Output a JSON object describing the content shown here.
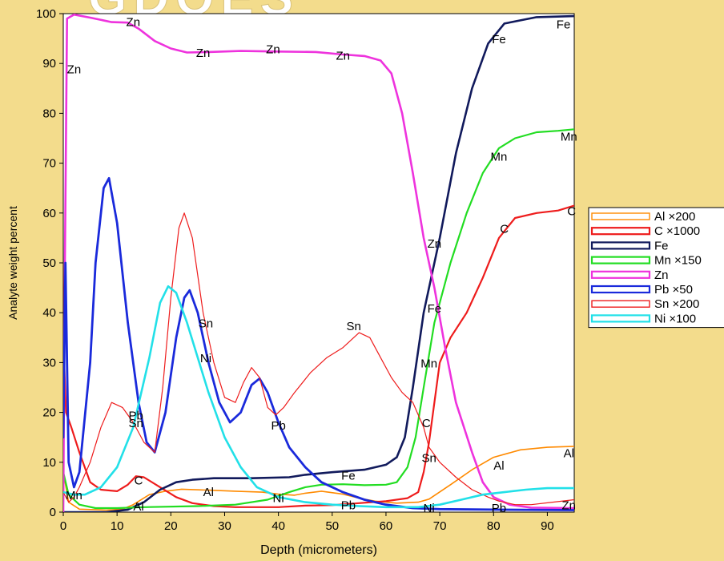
{
  "chart_data": {
    "type": "line",
    "title_fragment": "GDOES",
    "xlabel": "Depth (micrometers)",
    "ylabel": "Analyte weight percent",
    "xlim": [
      0,
      95
    ],
    "ylim": [
      0,
      100
    ],
    "xticks": [
      0,
      10,
      20,
      30,
      40,
      50,
      60,
      70,
      80,
      90
    ],
    "yticks": [
      0,
      10,
      20,
      30,
      40,
      50,
      60,
      70,
      80,
      90,
      100
    ],
    "grid": false,
    "legend_position": "right",
    "series": [
      {
        "name": "Al ×200",
        "color": "#ff8a00",
        "width": 1.6,
        "style": "double",
        "points": [
          [
            0,
            8
          ],
          [
            1,
            2
          ],
          [
            3,
            0.6
          ],
          [
            8,
            0.4
          ],
          [
            11,
            0.6
          ],
          [
            13,
            1.5
          ],
          [
            16,
            3.5
          ],
          [
            19,
            4.2
          ],
          [
            22,
            4.6
          ],
          [
            27,
            4.4
          ],
          [
            32,
            4.2
          ],
          [
            37,
            4.0
          ],
          [
            40,
            3.6
          ],
          [
            43,
            3.4
          ],
          [
            45,
            3.8
          ],
          [
            48,
            4.2
          ],
          [
            52,
            3.6
          ],
          [
            55,
            2.8
          ],
          [
            58,
            2.2
          ],
          [
            62,
            1.8
          ],
          [
            66,
            2
          ],
          [
            68,
            2.6
          ],
          [
            72,
            5.5
          ],
          [
            76,
            8.5
          ],
          [
            80,
            11
          ],
          [
            85,
            12.5
          ],
          [
            90,
            13
          ],
          [
            95,
            13.2
          ]
        ],
        "labels": [
          [
            14,
            1.3,
            "Al"
          ],
          [
            27,
            4.2,
            "Al"
          ],
          [
            81,
            9.5,
            "Al"
          ],
          [
            94,
            12,
            "Al"
          ]
        ]
      },
      {
        "name": "C ×1000",
        "color": "#ee1c1c",
        "width": 2.2,
        "style": "double",
        "points": [
          [
            0,
            35
          ],
          [
            0.5,
            20
          ],
          [
            1.5,
            17
          ],
          [
            3,
            12
          ],
          [
            5,
            6
          ],
          [
            7,
            4.5
          ],
          [
            10,
            4.2
          ],
          [
            12,
            5.5
          ],
          [
            13.5,
            7.2
          ],
          [
            15,
            7
          ],
          [
            18,
            5
          ],
          [
            21,
            3
          ],
          [
            24,
            1.8
          ],
          [
            28,
            1.2
          ],
          [
            32,
            1
          ],
          [
            40,
            1
          ],
          [
            45,
            1.3
          ],
          [
            50,
            1.4
          ],
          [
            55,
            1.8
          ],
          [
            60,
            2.2
          ],
          [
            64,
            2.8
          ],
          [
            66,
            4
          ],
          [
            67,
            8
          ],
          [
            68,
            14
          ],
          [
            69,
            22
          ],
          [
            70,
            30
          ],
          [
            72,
            35
          ],
          [
            75,
            40
          ],
          [
            78,
            47
          ],
          [
            81,
            55
          ],
          [
            84,
            59
          ],
          [
            88,
            60
          ],
          [
            92,
            60.5
          ],
          [
            95,
            61.5
          ]
        ],
        "labels": [
          [
            14,
            6.5,
            "C"
          ],
          [
            67.5,
            18,
            "C"
          ],
          [
            82,
            57,
            "C"
          ],
          [
            94.5,
            60.5,
            "C"
          ]
        ]
      },
      {
        "name": "Fe",
        "color": "#111a5c",
        "width": 2.6,
        "style": "double",
        "points": [
          [
            0,
            0
          ],
          [
            8,
            0
          ],
          [
            12,
            0.5
          ],
          [
            15,
            2
          ],
          [
            18,
            4.5
          ],
          [
            21,
            6
          ],
          [
            24,
            6.5
          ],
          [
            28,
            6.8
          ],
          [
            35,
            6.8
          ],
          [
            42,
            7
          ],
          [
            45,
            7.5
          ],
          [
            50,
            8
          ],
          [
            56,
            8.5
          ],
          [
            60,
            9.5
          ],
          [
            62,
            11
          ],
          [
            63.5,
            15
          ],
          [
            65,
            25
          ],
          [
            67,
            40
          ],
          [
            70,
            55
          ],
          [
            73,
            72
          ],
          [
            76,
            85
          ],
          [
            79,
            94
          ],
          [
            82,
            98
          ],
          [
            88,
            99.3
          ],
          [
            95,
            99.5
          ]
        ],
        "labels": [
          [
            53,
            7.5,
            "Fe"
          ],
          [
            69,
            41,
            "Fe"
          ],
          [
            81,
            95,
            "Fe"
          ],
          [
            93,
            98,
            "Fe"
          ]
        ]
      },
      {
        "name": "Mn ×150",
        "color": "#22dd22",
        "width": 2.2,
        "style": "double",
        "points": [
          [
            0,
            8
          ],
          [
            1,
            3.5
          ],
          [
            3,
            1.5
          ],
          [
            6,
            0.8
          ],
          [
            10,
            0.8
          ],
          [
            15,
            1
          ],
          [
            25,
            1.2
          ],
          [
            32,
            1.5
          ],
          [
            38,
            2.5
          ],
          [
            42,
            4
          ],
          [
            45,
            5
          ],
          [
            48,
            5.5
          ],
          [
            52,
            5.6
          ],
          [
            56,
            5.4
          ],
          [
            60,
            5.5
          ],
          [
            62,
            6
          ],
          [
            64,
            9
          ],
          [
            65.5,
            15
          ],
          [
            67,
            25
          ],
          [
            69,
            38
          ],
          [
            72,
            50
          ],
          [
            75,
            60
          ],
          [
            78,
            68
          ],
          [
            81,
            73
          ],
          [
            84,
            75
          ],
          [
            88,
            76.2
          ],
          [
            92,
            76.5
          ],
          [
            95,
            76.8
          ]
        ],
        "labels": [
          [
            2,
            3.5,
            "Mn"
          ],
          [
            68,
            30,
            "Mn"
          ],
          [
            81,
            71.5,
            "Mn"
          ],
          [
            94,
            75.5,
            "Mn"
          ]
        ]
      },
      {
        "name": "Zn",
        "color": "#ee33dd",
        "width": 2.6,
        "style": "double",
        "points": [
          [
            0,
            0
          ],
          [
            0.3,
            50
          ],
          [
            0.7,
            99
          ],
          [
            2,
            99.8
          ],
          [
            5,
            99.2
          ],
          [
            9,
            98.3
          ],
          [
            12,
            98.2
          ],
          [
            14,
            97
          ],
          [
            17,
            94.5
          ],
          [
            20,
            93
          ],
          [
            23,
            92.2
          ],
          [
            27,
            92.3
          ],
          [
            33,
            92.5
          ],
          [
            40,
            92.4
          ],
          [
            47,
            92.3
          ],
          [
            52,
            91.8
          ],
          [
            56,
            91.5
          ],
          [
            59,
            90.6
          ],
          [
            61,
            88
          ],
          [
            63,
            80
          ],
          [
            65,
            68
          ],
          [
            67,
            55
          ],
          [
            69,
            45
          ],
          [
            71,
            33
          ],
          [
            73,
            22
          ],
          [
            76,
            12
          ],
          [
            78,
            6
          ],
          [
            80,
            3
          ],
          [
            83,
            1.5
          ],
          [
            87,
            0.9
          ],
          [
            95,
            0.8
          ]
        ],
        "labels": [
          [
            2,
            89,
            "Zn"
          ],
          [
            13,
            98.5,
            "Zn"
          ],
          [
            26,
            92.3,
            "Zn"
          ],
          [
            39,
            93,
            "Zn"
          ],
          [
            52,
            91.7,
            "Zn"
          ],
          [
            69,
            54,
            "Zn"
          ],
          [
            94,
            1.5,
            "Zn"
          ]
        ]
      },
      {
        "name": "Pb ×50",
        "color": "#1a2adb",
        "width": 2.8,
        "style": "double",
        "points": [
          [
            0,
            15
          ],
          [
            0.4,
            50
          ],
          [
            1,
            10
          ],
          [
            2,
            5
          ],
          [
            3,
            8
          ],
          [
            5,
            30
          ],
          [
            6,
            50
          ],
          [
            7.5,
            65
          ],
          [
            8.5,
            67
          ],
          [
            10,
            58
          ],
          [
            12,
            38
          ],
          [
            14,
            22
          ],
          [
            15.5,
            14
          ],
          [
            17,
            12
          ],
          [
            19,
            20
          ],
          [
            21,
            35
          ],
          [
            22.5,
            43
          ],
          [
            23.5,
            44.5
          ],
          [
            25,
            40
          ],
          [
            27,
            30
          ],
          [
            29,
            22
          ],
          [
            31,
            18
          ],
          [
            33,
            20
          ],
          [
            35,
            25.5
          ],
          [
            36.5,
            26.8
          ],
          [
            38,
            24
          ],
          [
            40,
            18
          ],
          [
            42,
            13
          ],
          [
            45,
            9
          ],
          [
            48,
            6
          ],
          [
            52,
            4
          ],
          [
            56,
            2.5
          ],
          [
            60,
            1.5
          ],
          [
            65,
            0.8
          ],
          [
            70,
            0.6
          ],
          [
            80,
            0.5
          ],
          [
            95,
            0.4
          ]
        ],
        "labels": [
          [
            13.5,
            19.5,
            "Pb"
          ],
          [
            40,
            17.5,
            "Pb"
          ],
          [
            53,
            1.5,
            "Pb"
          ],
          [
            81,
            1,
            "Pb"
          ]
        ]
      },
      {
        "name": "Sn ×200",
        "color": "#ee1c1c",
        "width": 1.2,
        "style": "double",
        "points": [
          [
            0,
            4
          ],
          [
            1,
            2
          ],
          [
            2,
            3
          ],
          [
            3,
            5
          ],
          [
            5,
            10
          ],
          [
            7,
            17
          ],
          [
            9,
            22
          ],
          [
            11,
            21
          ],
          [
            13,
            18
          ],
          [
            15,
            14
          ],
          [
            17,
            12
          ],
          [
            18.5,
            25
          ],
          [
            20,
            43
          ],
          [
            21.5,
            57
          ],
          [
            22.5,
            60
          ],
          [
            24,
            55
          ],
          [
            26,
            40
          ],
          [
            28,
            30
          ],
          [
            30,
            23
          ],
          [
            32,
            22
          ],
          [
            33.5,
            26
          ],
          [
            35,
            29
          ],
          [
            36.5,
            27
          ],
          [
            38,
            21
          ],
          [
            39.5,
            19.5
          ],
          [
            41,
            21
          ],
          [
            43,
            24
          ],
          [
            46,
            28
          ],
          [
            49,
            31
          ],
          [
            52,
            33
          ],
          [
            55,
            36
          ],
          [
            57,
            35
          ],
          [
            59,
            31
          ],
          [
            61,
            27
          ],
          [
            63,
            24
          ],
          [
            65,
            22
          ],
          [
            67,
            17
          ],
          [
            68,
            13
          ],
          [
            70,
            10
          ],
          [
            73,
            7
          ],
          [
            76,
            4.5
          ],
          [
            79,
            3
          ],
          [
            81,
            2.2
          ],
          [
            84,
            1.5
          ],
          [
            87,
            1.5
          ],
          [
            91,
            2
          ],
          [
            95,
            2.5
          ]
        ],
        "labels": [
          [
            13.5,
            18,
            "Sn"
          ],
          [
            26.5,
            38,
            "Sn"
          ],
          [
            54,
            37.5,
            "Sn"
          ],
          [
            68,
            11,
            "Sn"
          ]
        ]
      },
      {
        "name": "Ni ×100",
        "color": "#22e0e8",
        "width": 2.6,
        "style": "double",
        "points": [
          [
            0,
            4
          ],
          [
            2,
            3.5
          ],
          [
            4,
            3.5
          ],
          [
            7,
            5
          ],
          [
            10,
            9
          ],
          [
            13,
            17
          ],
          [
            16,
            31
          ],
          [
            18,
            42
          ],
          [
            19.5,
            45.3
          ],
          [
            21,
            44
          ],
          [
            23,
            38
          ],
          [
            25,
            31
          ],
          [
            27,
            24
          ],
          [
            30,
            15
          ],
          [
            33,
            9
          ],
          [
            36,
            5
          ],
          [
            40,
            3
          ],
          [
            45,
            2
          ],
          [
            50,
            1.5
          ],
          [
            55,
            1.2
          ],
          [
            60,
            1
          ],
          [
            66,
            1
          ],
          [
            70,
            1.5
          ],
          [
            74,
            2.5
          ],
          [
            78,
            3.5
          ],
          [
            82,
            4
          ],
          [
            86,
            4.5
          ],
          [
            90,
            4.8
          ],
          [
            95,
            4.8
          ]
        ],
        "labels": [
          [
            26.5,
            31,
            "Ni"
          ],
          [
            40,
            3,
            "Ni"
          ],
          [
            68,
            1,
            "Ni"
          ]
        ]
      }
    ]
  }
}
